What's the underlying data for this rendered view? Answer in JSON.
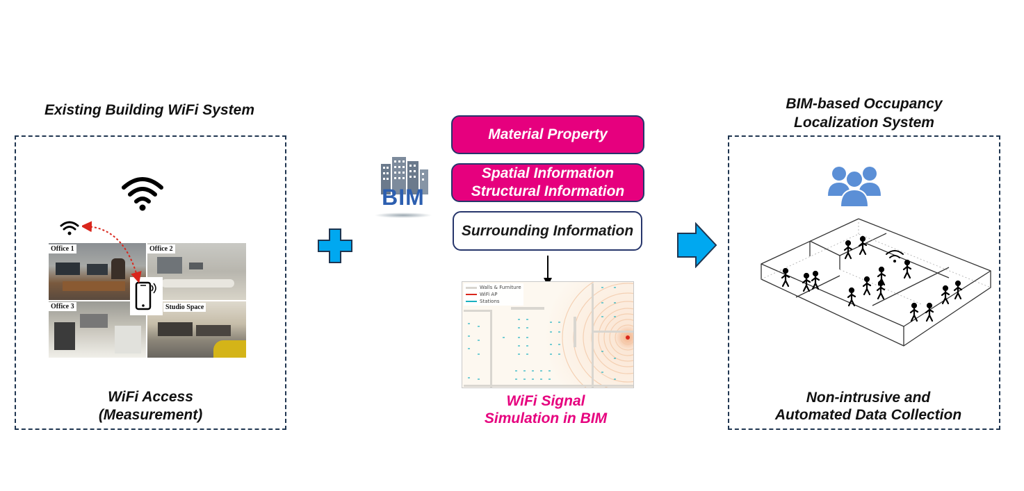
{
  "left_panel": {
    "title": "Existing Building WiFi System",
    "photo_labels": [
      "Office 1",
      "Office 2",
      "Office 3",
      "Studio Space"
    ],
    "caption_line1": "WiFi Access",
    "caption_line2": "(Measurement)"
  },
  "center": {
    "bim_logo_text": "BIM",
    "box_material": "Material Property",
    "box_spatial_line1": "Spatial Information",
    "box_spatial_line2": "Structural Information",
    "box_surrounding": "Surrounding Information",
    "sim_legend": [
      "Walls & Furniture",
      "WiFi AP",
      "Stations"
    ],
    "caption_line1": "WiFi Signal",
    "caption_line2": "Simulation in BIM"
  },
  "right_panel": {
    "title_line1": "BIM-based Occupancy",
    "title_line2": "Localization System",
    "caption_line1": "Non-intrusive and",
    "caption_line2": "Automated Data Collection"
  },
  "colors": {
    "pink": "#e6007e",
    "navy": "#26356b",
    "arrow_blue": "#00a8f0",
    "people_blue": "#5b8fd6"
  },
  "icons": [
    "wifi-icon",
    "smartphone-icon",
    "plus-icon",
    "building-icon",
    "arrow-right-icon",
    "people-group-icon"
  ]
}
